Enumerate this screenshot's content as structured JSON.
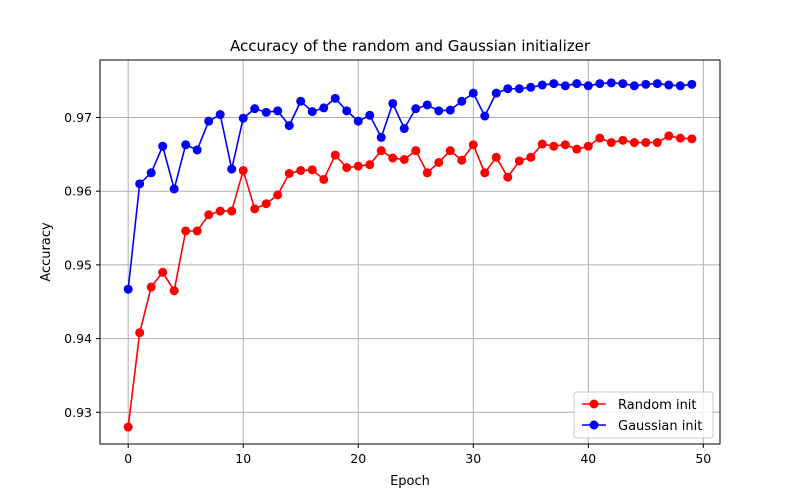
{
  "chart_data": {
    "type": "line",
    "title": "Accuracy of the random and Gaussian initializer",
    "xlabel": "Epoch",
    "ylabel": "Accuracy",
    "xlim": [
      -2.45,
      51.45
    ],
    "ylim": [
      0.9257,
      0.9778
    ],
    "xticks": [
      0,
      10,
      20,
      30,
      40,
      50
    ],
    "xtick_labels": [
      "0",
      "10",
      "20",
      "30",
      "40",
      "50"
    ],
    "yticks": [
      0.93,
      0.94,
      0.95,
      0.96,
      0.97
    ],
    "ytick_labels": [
      "0.93",
      "0.94",
      "0.95",
      "0.96",
      "0.97"
    ],
    "grid": true,
    "legend_position": "lower-right",
    "x": [
      0,
      1,
      2,
      3,
      4,
      5,
      6,
      7,
      8,
      9,
      10,
      11,
      12,
      13,
      14,
      15,
      16,
      17,
      18,
      19,
      20,
      21,
      22,
      23,
      24,
      25,
      26,
      27,
      28,
      29,
      30,
      31,
      32,
      33,
      34,
      35,
      36,
      37,
      38,
      39,
      40,
      41,
      42,
      43,
      44,
      45,
      46,
      47,
      48,
      49
    ],
    "series": [
      {
        "name": "Random init",
        "color": "#ff0000",
        "marker": "circle",
        "values": [
          0.928,
          0.9408,
          0.947,
          0.949,
          0.9465,
          0.9546,
          0.9546,
          0.9568,
          0.9573,
          0.9573,
          0.9628,
          0.9576,
          0.9583,
          0.9595,
          0.9624,
          0.9628,
          0.9629,
          0.9616,
          0.9649,
          0.9632,
          0.9634,
          0.9636,
          0.9655,
          0.9645,
          0.9643,
          0.9655,
          0.9625,
          0.9639,
          0.9655,
          0.9642,
          0.9663,
          0.9625,
          0.9646,
          0.9619,
          0.9641,
          0.9646,
          0.9664,
          0.9661,
          0.9663,
          0.9657,
          0.9661,
          0.9672,
          0.9666,
          0.9669,
          0.9666,
          0.9666,
          0.9666,
          0.9675,
          0.9672,
          0.9671
        ]
      },
      {
        "name": "Gaussian init",
        "color": "#0000ff",
        "marker": "circle",
        "values": [
          0.9467,
          0.961,
          0.9625,
          0.9661,
          0.9603,
          0.9663,
          0.9656,
          0.9695,
          0.9704,
          0.963,
          0.9699,
          0.9712,
          0.9707,
          0.9709,
          0.9689,
          0.9722,
          0.9708,
          0.9713,
          0.9726,
          0.9709,
          0.9695,
          0.9703,
          0.9673,
          0.9719,
          0.9685,
          0.9712,
          0.9717,
          0.9709,
          0.971,
          0.9722,
          0.9733,
          0.9702,
          0.9733,
          0.9739,
          0.9739,
          0.9741,
          0.9744,
          0.9746,
          0.9743,
          0.9746,
          0.9743,
          0.9746,
          0.9747,
          0.9746,
          0.9743,
          0.9745,
          0.9746,
          0.9744,
          0.9743,
          0.9745
        ]
      }
    ]
  }
}
